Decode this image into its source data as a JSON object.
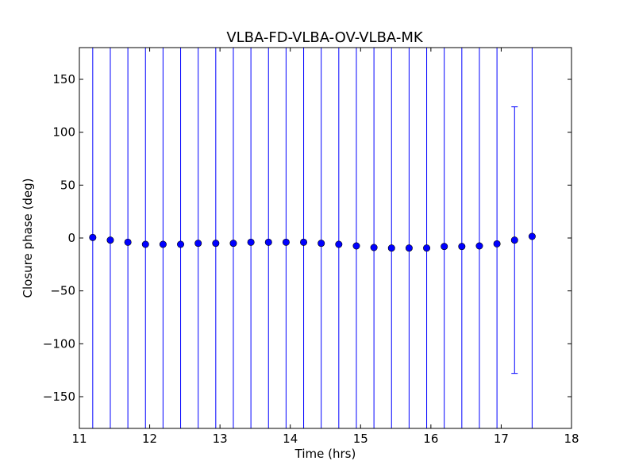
{
  "chart_data": {
    "type": "scatter",
    "title": "VLBA-FD-VLBA-OV-VLBA-MK",
    "xlabel": "Time (hrs)",
    "ylabel": "Closure phase (deg)",
    "xlim": [
      11,
      18
    ],
    "ylim": [
      -180,
      180
    ],
    "xticks": [
      11,
      12,
      13,
      14,
      15,
      16,
      17,
      18
    ],
    "xtick_labels": [
      "11",
      "12",
      "13",
      "14",
      "15",
      "16",
      "17",
      "18"
    ],
    "yticks": [
      150,
      100,
      50,
      0,
      -50,
      -100,
      -150
    ],
    "ytick_labels": [
      "150",
      "100",
      "50",
      "0",
      "−50",
      "−100",
      "−150"
    ],
    "grid": false,
    "marker_color": "#0000ff",
    "errorbar_color": "#0000ff",
    "series": [
      {
        "x": [
          11.19,
          11.44,
          11.69,
          11.94,
          12.19,
          12.44,
          12.69,
          12.94,
          13.19,
          13.44,
          13.69,
          13.94,
          14.19,
          14.44,
          14.69,
          14.94,
          15.19,
          15.44,
          15.69,
          15.94,
          16.19,
          16.44,
          16.69,
          16.94,
          17.19,
          17.44
        ],
        "y": [
          0.5,
          -2.0,
          -4.0,
          -6.0,
          -6.0,
          -6.0,
          -5.0,
          -5.0,
          -5.0,
          -4.0,
          -4.0,
          -4.0,
          -4.0,
          -5.0,
          -6.0,
          -7.5,
          -9.0,
          -9.5,
          -9.5,
          -9.5,
          -8.0,
          -8.0,
          -7.5,
          -5.5,
          -2.0,
          1.5
        ],
        "err_low": [
          -180,
          -180,
          -180,
          -180,
          -180,
          -180,
          -180,
          -180,
          -180,
          -180,
          -180,
          -180,
          -180,
          -180,
          -180,
          -180,
          -180,
          -180,
          -180,
          -180,
          -180,
          -180,
          -180,
          -180,
          -128,
          -180
        ],
        "err_high": [
          180,
          180,
          180,
          180,
          180,
          180,
          180,
          180,
          180,
          180,
          180,
          180,
          180,
          180,
          180,
          180,
          180,
          180,
          180,
          180,
          180,
          180,
          180,
          180,
          124,
          180
        ]
      }
    ]
  }
}
